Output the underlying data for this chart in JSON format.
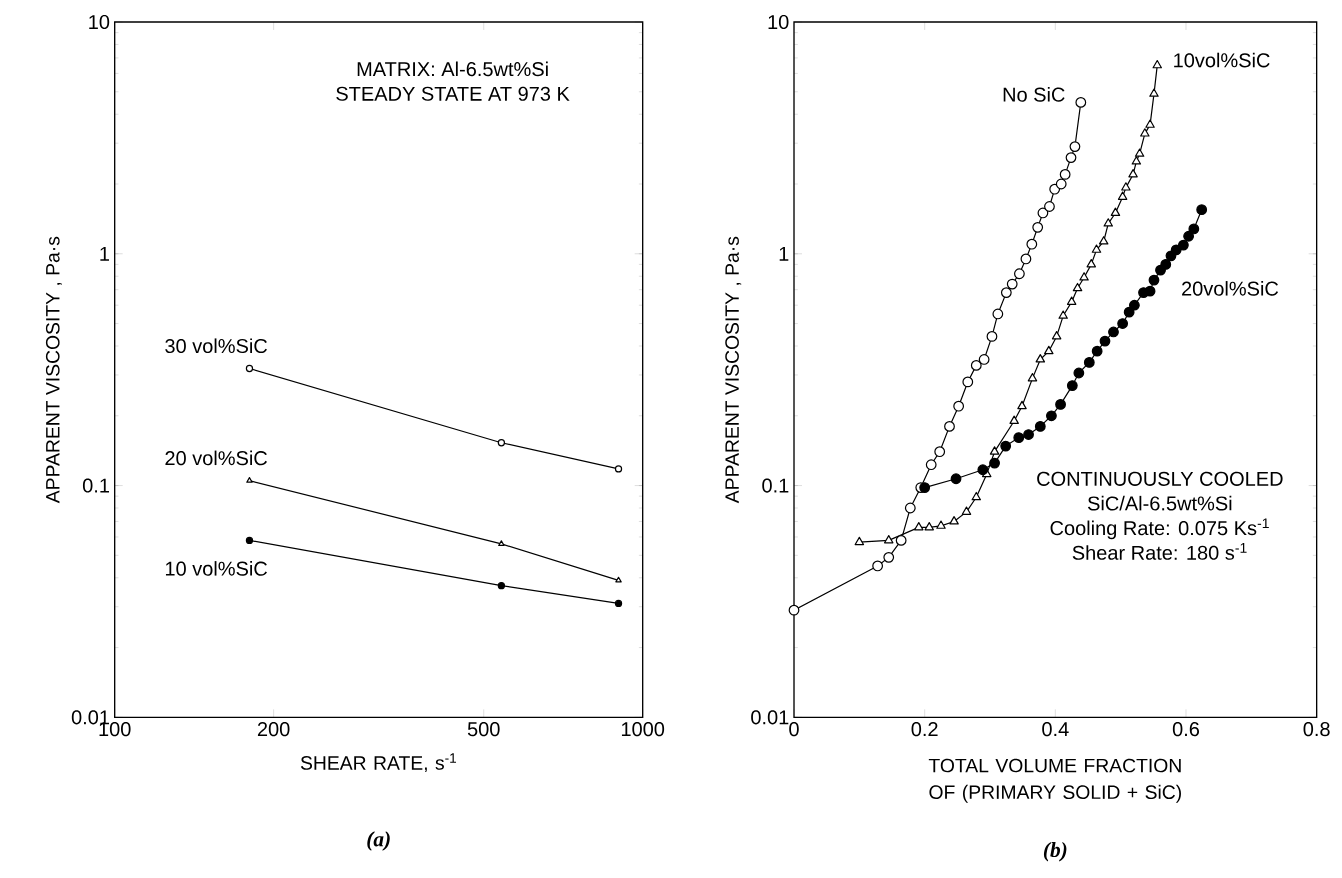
{
  "chart_data": [
    {
      "type": "line",
      "title": "(a)",
      "xlabel": "SHEAR RATE, s$^{-1}$",
      "ylabel": "APPARENT VISCOSITY ,  Pa·s",
      "annotations": [
        "MATRIX:  Al-6.5wt%Si",
        "STEADY STATE AT 973 K"
      ],
      "log": "xy",
      "xlim": [
        100,
        1000
      ],
      "xticks": [
        100,
        200,
        500,
        1000
      ],
      "ylim": [
        0.01,
        10
      ],
      "yticks": [
        0.01,
        0.1,
        1,
        10
      ],
      "series": [
        {
          "name": "30 vol%SiC",
          "color": "#000000",
          "marker": "circle",
          "x": [
            180,
            540,
            900
          ],
          "values": [
            0.32,
            0.153,
            0.118
          ]
        },
        {
          "name": "20 vol%SiC",
          "color": "#000000",
          "marker": "triangle",
          "x": [
            180,
            540,
            900
          ],
          "values": [
            0.105,
            0.056,
            0.039
          ]
        },
        {
          "name": "10 vol%SiC",
          "color": "#000000",
          "marker": "circle",
          "x": [
            180,
            540,
            900
          ],
          "values": [
            0.058,
            0.037,
            0.031
          ]
        }
      ]
    },
    {
      "type": "line",
      "title": "(b)",
      "xlabel": "TOTAL VOLUME FRACTION OF (PRIMARY SOLID + SiC)",
      "ylabel": "APPARENT VISCOSITY ,  Pa·s",
      "annotations": [
        "CONTINUOUSLY COOLED",
        "SiC/Al-6.5wt%Si",
        "Cooling Rate: 0.075 Ks$^{-1}$",
        "Shear Rate: 180 s$^{-1}$"
      ],
      "log": "y",
      "xlim": [
        0,
        0.8
      ],
      "xticks": [
        0,
        0.2,
        0.4,
        0.6,
        0.8
      ],
      "ylim": [
        0.01,
        10
      ],
      "yticks": [
        0.01,
        0.1,
        1,
        10
      ],
      "series": [
        {
          "name": "No SiC",
          "color": "#000000",
          "marker": "circle",
          "x": [
            0,
            0.128,
            0.145,
            0.164,
            0.178,
            0.194,
            0.21,
            0.223,
            0.238,
            0.252,
            0.266,
            0.279,
            0.291,
            0.303,
            0.312,
            0.325,
            0.334,
            0.345,
            0.355,
            0.364,
            0.373,
            0.381,
            0.391,
            0.399,
            0.409,
            0.415,
            0.424,
            0.43,
            0.439
          ],
          "values": [
            0.029,
            0.045,
            0.049,
            0.058,
            0.08,
            0.098,
            0.123,
            0.14,
            0.18,
            0.22,
            0.28,
            0.33,
            0.35,
            0.44,
            0.55,
            0.68,
            0.74,
            0.82,
            0.95,
            1.1,
            1.3,
            1.5,
            1.6,
            1.9,
            2.0,
            2.2,
            2.6,
            2.9,
            4.5
          ]
        },
        {
          "name": "10vol%SiC",
          "color": "#000000",
          "marker": "triangle",
          "x": [
            0.1,
            0.145,
            0.191,
            0.207,
            0.225,
            0.245,
            0.264,
            0.279,
            0.295,
            0.307,
            0.337,
            0.349,
            0.365,
            0.377,
            0.39,
            0.402,
            0.412,
            0.425,
            0.434,
            0.444,
            0.455,
            0.463,
            0.474,
            0.481,
            0.492,
            0.503,
            0.508,
            0.519,
            0.524,
            0.529,
            0.537,
            0.545,
            0.551,
            0.556
          ],
          "values": [
            0.057,
            0.058,
            0.066,
            0.066,
            0.067,
            0.07,
            0.077,
            0.089,
            0.112,
            0.14,
            0.19,
            0.22,
            0.29,
            0.35,
            0.38,
            0.44,
            0.54,
            0.62,
            0.71,
            0.79,
            0.9,
            1.04,
            1.13,
            1.35,
            1.5,
            1.76,
            1.93,
            2.2,
            2.5,
            2.7,
            3.3,
            3.6,
            4.9,
            6.5
          ]
        },
        {
          "name": "20vol%SiC",
          "color": "#000000",
          "marker": "circle",
          "x": [
            0.2,
            0.248,
            0.289,
            0.307,
            0.324,
            0.344,
            0.359,
            0.377,
            0.394,
            0.408,
            0.426,
            0.436,
            0.452,
            0.464,
            0.476,
            0.489,
            0.503,
            0.513,
            0.521,
            0.535,
            0.545,
            0.551,
            0.561,
            0.569,
            0.577,
            0.585,
            0.596,
            0.604,
            0.612,
            0.624
          ],
          "values": [
            0.098,
            0.107,
            0.117,
            0.125,
            0.148,
            0.161,
            0.166,
            0.18,
            0.2,
            0.224,
            0.27,
            0.306,
            0.34,
            0.38,
            0.42,
            0.46,
            0.5,
            0.56,
            0.6,
            0.68,
            0.69,
            0.77,
            0.85,
            0.9,
            0.98,
            1.04,
            1.09,
            1.19,
            1.28,
            1.55
          ]
        }
      ]
    }
  ]
}
